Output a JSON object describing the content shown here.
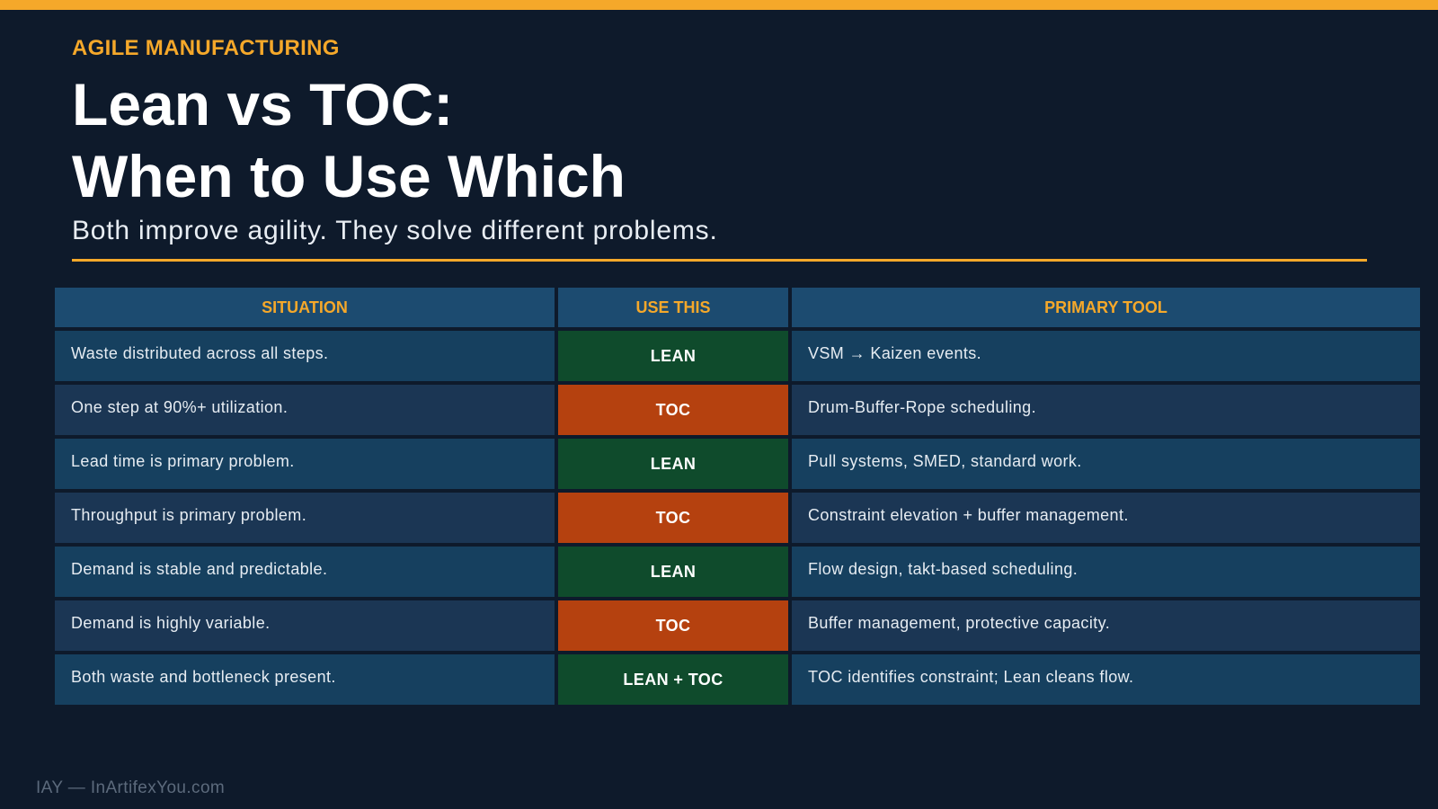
{
  "kicker": "AGILE MANUFACTURING",
  "title": {
    "line1": "Lean vs TOC:",
    "line2": "When to Use Which"
  },
  "subtitle": "Both improve agility. They solve different problems.",
  "table": {
    "headers": [
      "SITUATION",
      "USE THIS",
      "PRIMARY TOOL"
    ],
    "rows": [
      {
        "situation": "Waste distributed across all steps.",
        "use": "LEAN",
        "tool": "VSM → Kaizen events."
      },
      {
        "situation": "One step at 90%+ utilization.",
        "use": "TOC",
        "tool": "Drum-Buffer-Rope scheduling."
      },
      {
        "situation": "Lead time is primary problem.",
        "use": "LEAN",
        "tool": "Pull systems, SMED, standard work."
      },
      {
        "situation": "Throughput is primary problem.",
        "use": "TOC",
        "tool": "Constraint elevation + buffer management."
      },
      {
        "situation": "Demand is stable and predictable.",
        "use": "LEAN",
        "tool": "Flow design, takt-based scheduling."
      },
      {
        "situation": "Demand is highly variable.",
        "use": "TOC",
        "tool": "Buffer management, protective capacity."
      },
      {
        "situation": "Both waste and bottleneck present.",
        "use": "LEAN + TOC",
        "tool": "TOC identifies constraint; Lean cleans flow."
      }
    ]
  },
  "footer": "IAY — InArtifexYou.com",
  "colors": {
    "background": "#0e1a2b",
    "accent": "#f5a82a",
    "lean": "#0f4b2c",
    "toc": "#b5410f",
    "header_cell": "#1c4b70"
  }
}
